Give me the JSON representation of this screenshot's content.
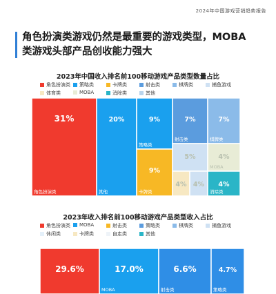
{
  "report_title": "2024年中国游戏营销趋势报告",
  "headline_line1": "角色扮演类游戏仍然是最重要的游戏类型，MOBA",
  "headline_line2": "类游戏头部产品创收能力强大",
  "colors": {
    "rpg": "#f03a2e",
    "strategy": "#1aa0ee",
    "card": "#f7b825",
    "shooter": "#5b9cde",
    "chess": "#8bbbe9",
    "capture": "#cfe1f3",
    "sports": "#f7e8c2",
    "moba": "#e8ecd6",
    "elimination": "#2ab5c7",
    "other": "#b9d4ec",
    "casual": "#e4f0fa",
    "auto_chess": "#eef3f8",
    "headline_bar": "#2f7fd6"
  },
  "chart_data": [
    {
      "type": "treemap",
      "title": "2023年中国收入排名前100移动游戏产品类型数量占比",
      "legend": [
        {
          "name": "角色扮演类",
          "color": "#f03a2e"
        },
        {
          "name": "策略类",
          "color": "#1aa0ee"
        },
        {
          "name": "卡牌类",
          "color": "#f7b825"
        },
        {
          "name": "射击类",
          "color": "#5b9cde"
        },
        {
          "name": "棋牌类",
          "color": "#8bbbe9"
        },
        {
          "name": "捕鱼游戏",
          "color": "#cfe1f3"
        },
        {
          "name": "体育类",
          "color": "#f7e8c2"
        },
        {
          "name": "MOBA",
          "color": "#e8ecd6"
        },
        {
          "name": "消除类",
          "color": "#2ab5c7"
        },
        {
          "name": "其他",
          "color": "#b9d4ec"
        }
      ],
      "cells": [
        {
          "name": "角色扮演类",
          "value_label": "31%",
          "color": "#f03a2e"
        },
        {
          "name": "其他",
          "value_label": "20%",
          "color": "#1aa0ee"
        },
        {
          "name": "策略类",
          "value_label": "9%",
          "color": "#1aa0ee"
        },
        {
          "name": "卡牌类",
          "value_label": "9%",
          "color": "#f7b825"
        },
        {
          "name": "射击类",
          "value_label": "7%",
          "color": "#5b9cde"
        },
        {
          "name": "棋牌类",
          "value_label": "7%",
          "color": "#8bbbe9"
        },
        {
          "name": "",
          "value_label": "5%",
          "color": "#cfe1f3"
        },
        {
          "name": "",
          "value_label": "4%",
          "color": "#f7e8c2"
        },
        {
          "name": "MOBA",
          "value_label": "4%",
          "color": "#e8ecd6"
        },
        {
          "name": "",
          "value_label": "4%",
          "color": "#cfe1f3"
        },
        {
          "name": "消除类",
          "value_label": "4%",
          "color": "#2ab5c7"
        }
      ]
    },
    {
      "type": "treemap",
      "title": "2023年收入排名前100移动游戏产品类型收入占比",
      "legend": [
        {
          "name": "角色扮演类",
          "color": "#f03a2e"
        },
        {
          "name": "MOBA",
          "color": "#1aa0ee"
        },
        {
          "name": "射击类",
          "color": "#f7b825"
        },
        {
          "name": "策略类",
          "color": "#5b9cde"
        },
        {
          "name": "棋牌类",
          "color": "#8bbbe9"
        },
        {
          "name": "捕鱼游戏",
          "color": "#cfe1f3"
        },
        {
          "name": "休闲类",
          "color": "#e4f0fa"
        },
        {
          "name": "卡牌类",
          "color": "#f7e8c2"
        },
        {
          "name": "自走类",
          "color": "#eef3f8"
        },
        {
          "name": "其他",
          "color": "#2ab5c7"
        }
      ],
      "cells": [
        {
          "name": "",
          "value_label": "29.6%",
          "color": "#f03a2e"
        },
        {
          "name": "MOBA",
          "value_label": "17.0%",
          "color": "#1aa0ee"
        },
        {
          "name": "射击类",
          "value_label": "6.6%",
          "color": "#2f8ee6"
        },
        {
          "name": "策略类",
          "value_label": "4.7%",
          "color": "#2f8ee6"
        }
      ]
    }
  ]
}
